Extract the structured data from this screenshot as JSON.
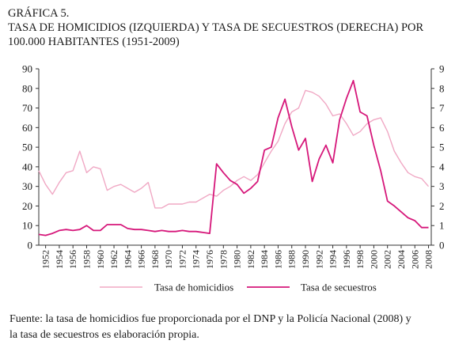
{
  "figure": {
    "label": "GRÁFICA 5.",
    "title_line1": "TASA DE HOMICIDIOS (IZQUIERDA) Y TASA DE SECUESTROS (DERECHA) POR",
    "title_line2": "100.000 HABITANTES (1951-2009)",
    "source_line1": "Fuente: la tasa de homicidios fue proporcionada por el DNP y la Policía Nacional (2008) y",
    "source_line2": "la tasa de secuestros es elaboración propia."
  },
  "chart_data": {
    "type": "line",
    "x_ticks": [
      1952,
      1954,
      1956,
      1958,
      1960,
      1962,
      1964,
      1966,
      1968,
      1970,
      1972,
      1974,
      1976,
      1978,
      1980,
      1982,
      1984,
      1986,
      1988,
      1990,
      1992,
      1994,
      1996,
      1998,
      2000,
      2002,
      2004,
      2006,
      2008
    ],
    "y_left": {
      "lim": [
        0,
        90
      ],
      "ticks": [
        0,
        10,
        20,
        30,
        40,
        50,
        60,
        70,
        80,
        90
      ]
    },
    "y_right": {
      "lim": [
        0,
        9
      ],
      "ticks": [
        0,
        1,
        2,
        3,
        4,
        5,
        6,
        7,
        8,
        9
      ]
    },
    "legend_position": "bottom",
    "series": [
      {
        "name": "Tasa de homicidios",
        "axis": "left",
        "color": "#f0a8c4",
        "x": [
          1951,
          1952,
          1953,
          1954,
          1955,
          1956,
          1957,
          1958,
          1959,
          1960,
          1961,
          1962,
          1963,
          1964,
          1965,
          1966,
          1967,
          1968,
          1969,
          1970,
          1971,
          1972,
          1973,
          1974,
          1975,
          1976,
          1977,
          1978,
          1979,
          1980,
          1981,
          1982,
          1983,
          1984,
          1985,
          1986,
          1987,
          1988,
          1989,
          1990,
          1991,
          1992,
          1993,
          1994,
          1995,
          1996,
          1997,
          1998,
          1999,
          2000,
          2001,
          2002,
          2003,
          2004,
          2005,
          2006,
          2007,
          2008
        ],
        "y": [
          38,
          31,
          26,
          32,
          37,
          38,
          48,
          37,
          40,
          39,
          28,
          30,
          31,
          29,
          27,
          29,
          32,
          19,
          19,
          21,
          21,
          21,
          22,
          22,
          24,
          26,
          25,
          28,
          30,
          33,
          35,
          33,
          36,
          42,
          48,
          53,
          62,
          68,
          70,
          79,
          78,
          76,
          72,
          66,
          67,
          62,
          56,
          58,
          62,
          64,
          65,
          58,
          48,
          42,
          37,
          35,
          34,
          30
        ]
      },
      {
        "name": "Tasa de secuestros",
        "axis": "right",
        "color": "#d6177a",
        "x": [
          1951,
          1952,
          1953,
          1954,
          1955,
          1956,
          1957,
          1958,
          1959,
          1960,
          1961,
          1962,
          1963,
          1964,
          1965,
          1966,
          1967,
          1968,
          1969,
          1970,
          1971,
          1972,
          1973,
          1974,
          1975,
          1976,
          1977,
          1978,
          1979,
          1980,
          1981,
          1982,
          1983,
          1984,
          1985,
          1986,
          1987,
          1988,
          1989,
          1990,
          1991,
          1992,
          1993,
          1994,
          1995,
          1996,
          1997,
          1998,
          1999,
          2000,
          2001,
          2002,
          2003,
          2004,
          2005,
          2006,
          2007,
          2008
        ],
        "y": [
          0.55,
          0.5,
          0.6,
          0.75,
          0.8,
          0.75,
          0.8,
          1.0,
          0.75,
          0.75,
          1.05,
          1.05,
          1.05,
          0.85,
          0.8,
          0.8,
          0.75,
          0.7,
          0.75,
          0.7,
          0.7,
          0.75,
          0.7,
          0.7,
          0.65,
          0.6,
          4.15,
          3.7,
          3.3,
          3.1,
          2.65,
          2.9,
          3.25,
          4.85,
          5.0,
          6.5,
          7.45,
          6.05,
          4.85,
          5.45,
          3.25,
          4.4,
          5.1,
          4.2,
          6.4,
          7.5,
          8.4,
          6.8,
          6.6,
          5.1,
          3.8,
          2.25,
          2.0,
          1.7,
          1.4,
          1.25,
          0.9,
          0.9
        ]
      }
    ]
  }
}
